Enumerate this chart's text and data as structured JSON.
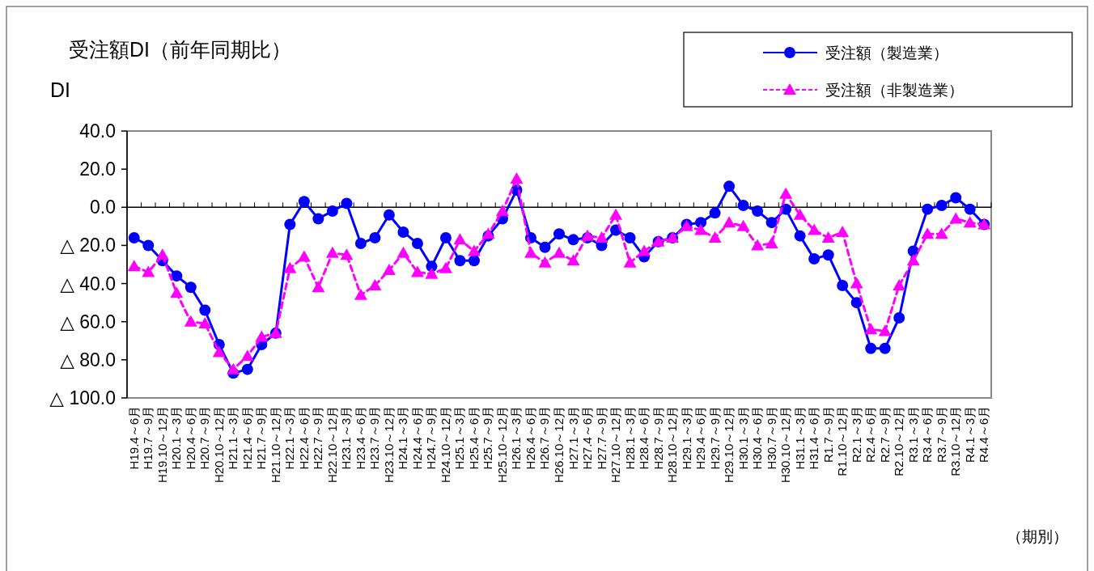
{
  "chart_data": {
    "type": "line",
    "title": "受注額DI（前年同期比）",
    "ylabel": "DI",
    "xlabel": "（期別）",
    "categories": [
      "H19.4～6月",
      "H19.7～9月",
      "H19.10～12月",
      "H20.1～3月",
      "H20.4～6月",
      "H20.7～9月",
      "H20.10～12月",
      "H21.1～3月",
      "H21.4～6月",
      "H21.7～9月",
      "H21.10～12月",
      "H22.1～3月",
      "H22.4～6月",
      "H22.7～9月",
      "H22.10～12月",
      "H23.1～3月",
      "H23.4～6月",
      "H23.7～9月",
      "H23.10～12月",
      "H24.1～3月",
      "H24.4～6月",
      "H24.7～9月",
      "H24.10～12月",
      "H25.1～3月",
      "H25.4～6月",
      "H25.7～9月",
      "H25.10～12月",
      "H26.1～3月",
      "H26.4～6月",
      "H26.7～9月",
      "H26.10～12月",
      "H27.1～3月",
      "H27.4～6月",
      "H27.7～9月",
      "H27.10～12月",
      "H28.1～3月",
      "H28.4～6月",
      "H28.7～9月",
      "H28.10～12月",
      "H29.1～3月",
      "H29.4～6月",
      "H29.7～9月",
      "H29.10～12月",
      "H30.1～3月",
      "H30.4～6月",
      "H30.7～9月",
      "H30.10～12月",
      "H31.1～3月",
      "H31.4～6月",
      "R1.7～9月",
      "R1.10～12月",
      "R2.1～3月",
      "R2.4～6月",
      "R2.7～9月",
      "R2.10～12月",
      "R3.1～3月",
      "R3.4～6月",
      "R3.7～9月",
      "R3.10～12月",
      "R4.1～3月",
      "R4.4～6月"
    ],
    "series": [
      {
        "name": "受注額（製造業）",
        "color": "#0000ff",
        "marker": "circle",
        "line_style": "solid",
        "values": [
          -16,
          -20,
          -28,
          -36,
          -42,
          -54,
          -72,
          -87,
          -85,
          -72,
          -66,
          -9,
          3,
          -6,
          -2,
          2,
          -19,
          -16,
          -4,
          -13,
          -19,
          -31,
          -16,
          -28,
          -28,
          -15,
          -6,
          9,
          -16,
          -21,
          -14,
          -17,
          -16,
          -20,
          -12,
          -16,
          -26,
          -18,
          -16,
          -9,
          -8,
          -3,
          11,
          1,
          -2,
          -8,
          -1,
          -15,
          -27,
          -25,
          -41,
          -50,
          -74,
          -74,
          -58,
          -23,
          -1,
          1,
          5,
          -1,
          -9
        ]
      },
      {
        "name": "受注額（非製造業）",
        "color": "#ff00ff",
        "marker": "triangle",
        "line_style": "dashed",
        "values": [
          -31,
          -34,
          -25,
          -45,
          -60,
          -61,
          -76,
          -85,
          -78,
          -68,
          -66,
          -32,
          -26,
          -42,
          -24,
          -25,
          -46,
          -41,
          -33,
          -24,
          -34,
          -35,
          -32,
          -17,
          -23,
          -14,
          -2,
          15,
          -24,
          -29,
          -24,
          -28,
          -15,
          -16,
          -4,
          -29,
          -23,
          -18,
          -16,
          -10,
          -12,
          -16,
          -8,
          -10,
          -20,
          -19,
          7,
          -4,
          -12,
          -16,
          -13,
          -40,
          -64,
          -65,
          -41,
          -28,
          -14,
          -14,
          -6,
          -8,
          -9
        ]
      }
    ],
    "ylim": [
      -100,
      40
    ],
    "yticks": [
      {
        "value": 40,
        "label": "40.0"
      },
      {
        "value": 20,
        "label": "20.0"
      },
      {
        "value": 0,
        "label": "0.0"
      },
      {
        "value": -20,
        "label": "△ 20.0"
      },
      {
        "value": -40,
        "label": "△ 40.0"
      },
      {
        "value": -60,
        "label": "△ 60.0"
      },
      {
        "value": -80,
        "label": "△ 80.0"
      },
      {
        "value": -100,
        "label": "△ 100.0"
      }
    ],
    "legend": "top right"
  }
}
